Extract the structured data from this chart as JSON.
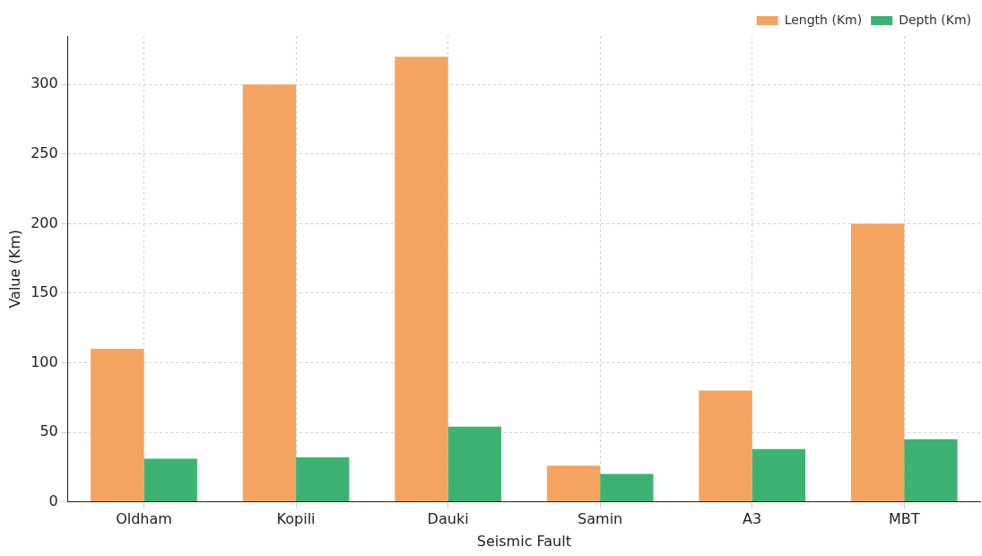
{
  "chart_data": {
    "type": "bar",
    "xlabel": "Seismic Fault",
    "ylabel": "Value (Km)",
    "categories": [
      "Oldham",
      "Kopili",
      "Dauki",
      "Samin",
      "A3",
      "MBT"
    ],
    "series": [
      {
        "name": "Length (Km)",
        "color": "#f4a460",
        "values": [
          110,
          300,
          320,
          26,
          80,
          200
        ]
      },
      {
        "name": "Depth (Km)",
        "color": "#3cb371",
        "values": [
          31,
          32,
          54,
          20,
          38,
          45
        ]
      }
    ],
    "ylim": [
      0,
      335
    ],
    "yticks": [
      0,
      50,
      100,
      150,
      200,
      250,
      300
    ],
    "grid": true,
    "legend": "top right"
  }
}
